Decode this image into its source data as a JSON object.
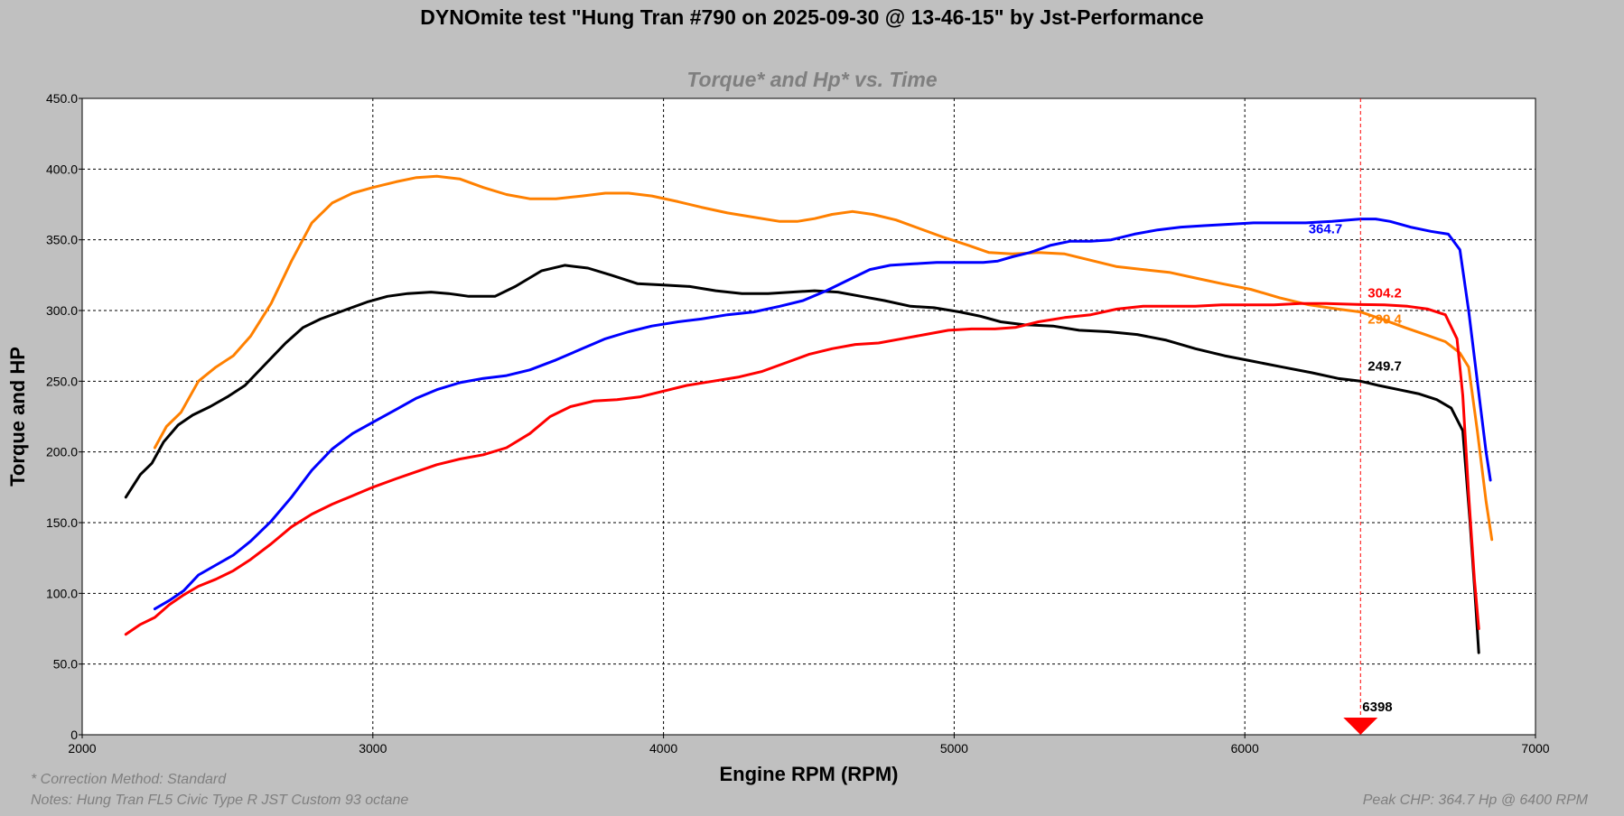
{
  "header": {
    "title": "DYNOmite test \"Hung Tran #790 on 2025-09-30 @ 13-46-15\" by Jst-Performance",
    "subtitle": "Torque* and Hp* vs. Time"
  },
  "footer": {
    "correction": "* Correction Method: Standard",
    "notes": "Notes: Hung Tran FL5 Civic Type R JST Custom 93 octane",
    "peak": "Peak CHP: 364.7 Hp @ 6400 RPM"
  },
  "chart_data": {
    "type": "line",
    "title": "Torque* and Hp* vs. Time",
    "xlabel": "Engine RPM (RPM)",
    "ylabel": "Torque and HP",
    "xlim": [
      2000,
      7000
    ],
    "ylim": [
      0,
      450
    ],
    "x_ticks": [
      2000,
      3000,
      4000,
      5000,
      6000,
      7000
    ],
    "y_ticks": [
      0,
      50,
      100,
      150,
      200,
      250,
      300,
      350,
      400,
      450
    ],
    "y_tick_labels": [
      "0",
      "50.0",
      "100.0",
      "150.0",
      "200.0",
      "250.0",
      "300.0",
      "350.0",
      "400.0",
      "450.0"
    ],
    "grid": true,
    "cursor": {
      "rpm": 6398,
      "label": "6398",
      "color": "#ff0000"
    },
    "series": [
      {
        "color": "#ff8000",
        "points": [
          [
            2250,
            203
          ],
          [
            2290,
            218
          ],
          [
            2340,
            228
          ],
          [
            2400,
            250
          ],
          [
            2460,
            260
          ],
          [
            2520,
            268
          ],
          [
            2580,
            282
          ],
          [
            2650,
            305
          ],
          [
            2720,
            335
          ],
          [
            2790,
            362
          ],
          [
            2860,
            376
          ],
          [
            2930,
            383
          ],
          [
            3000,
            387
          ],
          [
            3080,
            391
          ],
          [
            3150,
            394
          ],
          [
            3220,
            395
          ],
          [
            3300,
            393
          ],
          [
            3380,
            387
          ],
          [
            3460,
            382
          ],
          [
            3540,
            379
          ],
          [
            3630,
            379
          ],
          [
            3720,
            381
          ],
          [
            3800,
            383
          ],
          [
            3880,
            383
          ],
          [
            3960,
            381
          ],
          [
            4050,
            377
          ],
          [
            4130,
            373
          ],
          [
            4220,
            369
          ],
          [
            4310,
            366
          ],
          [
            4400,
            363
          ],
          [
            4460,
            363
          ],
          [
            4520,
            365
          ],
          [
            4580,
            368
          ],
          [
            4650,
            370
          ],
          [
            4720,
            368
          ],
          [
            4800,
            364
          ],
          [
            4880,
            358
          ],
          [
            4960,
            352
          ],
          [
            5050,
            346
          ],
          [
            5120,
            341
          ],
          [
            5200,
            340
          ],
          [
            5290,
            341
          ],
          [
            5380,
            340
          ],
          [
            5460,
            336
          ],
          [
            5560,
            331
          ],
          [
            5650,
            329
          ],
          [
            5740,
            327
          ],
          [
            5830,
            323
          ],
          [
            5920,
            319
          ],
          [
            6020,
            315
          ],
          [
            6120,
            309
          ],
          [
            6220,
            304
          ],
          [
            6320,
            301
          ],
          [
            6398,
            299
          ],
          [
            6470,
            294
          ],
          [
            6550,
            288
          ],
          [
            6620,
            283
          ],
          [
            6690,
            278
          ],
          [
            6740,
            270
          ],
          [
            6770,
            260
          ],
          [
            6800,
            215
          ],
          [
            6830,
            165
          ],
          [
            6850,
            138
          ]
        ],
        "end_label": "299.4"
      },
      {
        "color": "#000000",
        "points": [
          [
            2150,
            168
          ],
          [
            2200,
            184
          ],
          [
            2240,
            192
          ],
          [
            2280,
            207
          ],
          [
            2330,
            219
          ],
          [
            2380,
            226
          ],
          [
            2440,
            232
          ],
          [
            2500,
            239
          ],
          [
            2560,
            247
          ],
          [
            2630,
            262
          ],
          [
            2700,
            277
          ],
          [
            2760,
            288
          ],
          [
            2820,
            294
          ],
          [
            2900,
            300
          ],
          [
            2980,
            306
          ],
          [
            3050,
            310
          ],
          [
            3120,
            312
          ],
          [
            3200,
            313
          ],
          [
            3260,
            312
          ],
          [
            3330,
            310
          ],
          [
            3420,
            310
          ],
          [
            3490,
            317
          ],
          [
            3580,
            328
          ],
          [
            3660,
            332
          ],
          [
            3740,
            330
          ],
          [
            3820,
            325
          ],
          [
            3910,
            319
          ],
          [
            4000,
            318
          ],
          [
            4090,
            317
          ],
          [
            4180,
            314
          ],
          [
            4270,
            312
          ],
          [
            4360,
            312
          ],
          [
            4440,
            313
          ],
          [
            4520,
            314
          ],
          [
            4600,
            313
          ],
          [
            4680,
            310
          ],
          [
            4760,
            307
          ],
          [
            4850,
            303
          ],
          [
            4930,
            302
          ],
          [
            5020,
            299
          ],
          [
            5090,
            296
          ],
          [
            5160,
            292
          ],
          [
            5240,
            290
          ],
          [
            5340,
            289
          ],
          [
            5430,
            286
          ],
          [
            5530,
            285
          ],
          [
            5630,
            283
          ],
          [
            5730,
            279
          ],
          [
            5830,
            273
          ],
          [
            5930,
            268
          ],
          [
            6030,
            264
          ],
          [
            6130,
            260
          ],
          [
            6230,
            256
          ],
          [
            6320,
            252
          ],
          [
            6398,
            250
          ],
          [
            6460,
            247
          ],
          [
            6530,
            244
          ],
          [
            6600,
            241
          ],
          [
            6660,
            237
          ],
          [
            6710,
            231
          ],
          [
            6750,
            215
          ],
          [
            6775,
            150
          ],
          [
            6795,
            90
          ],
          [
            6805,
            58
          ]
        ],
        "end_label": "249.7"
      },
      {
        "color": "#0000ff",
        "points": [
          [
            2250,
            89
          ],
          [
            2300,
            95
          ],
          [
            2350,
            102
          ],
          [
            2400,
            113
          ],
          [
            2460,
            120
          ],
          [
            2520,
            127
          ],
          [
            2580,
            137
          ],
          [
            2650,
            151
          ],
          [
            2720,
            168
          ],
          [
            2790,
            187
          ],
          [
            2860,
            202
          ],
          [
            2930,
            213
          ],
          [
            3000,
            221
          ],
          [
            3080,
            230
          ],
          [
            3150,
            238
          ],
          [
            3220,
            244
          ],
          [
            3300,
            249
          ],
          [
            3380,
            252
          ],
          [
            3460,
            254
          ],
          [
            3540,
            258
          ],
          [
            3630,
            265
          ],
          [
            3720,
            273
          ],
          [
            3800,
            280
          ],
          [
            3880,
            285
          ],
          [
            3960,
            289
          ],
          [
            4050,
            292
          ],
          [
            4130,
            294
          ],
          [
            4220,
            297
          ],
          [
            4310,
            299
          ],
          [
            4400,
            303
          ],
          [
            4480,
            307
          ],
          [
            4560,
            314
          ],
          [
            4640,
            322
          ],
          [
            4710,
            329
          ],
          [
            4780,
            332
          ],
          [
            4860,
            333
          ],
          [
            4940,
            334
          ],
          [
            5020,
            334
          ],
          [
            5100,
            334
          ],
          [
            5150,
            335
          ],
          [
            5200,
            338
          ],
          [
            5260,
            341
          ],
          [
            5330,
            346
          ],
          [
            5400,
            349
          ],
          [
            5470,
            349
          ],
          [
            5540,
            350
          ],
          [
            5620,
            354
          ],
          [
            5700,
            357
          ],
          [
            5780,
            359
          ],
          [
            5860,
            360
          ],
          [
            5950,
            361
          ],
          [
            6030,
            362
          ],
          [
            6120,
            362
          ],
          [
            6210,
            362
          ],
          [
            6300,
            363
          ],
          [
            6398,
            364.7
          ],
          [
            6450,
            364.7
          ],
          [
            6500,
            363
          ],
          [
            6570,
            359
          ],
          [
            6640,
            356
          ],
          [
            6700,
            354
          ],
          [
            6740,
            343
          ],
          [
            6770,
            300
          ],
          [
            6800,
            250
          ],
          [
            6830,
            200
          ],
          [
            6845,
            180
          ]
        ],
        "end_label": "364.7"
      },
      {
        "color": "#ff0000",
        "points": [
          [
            2150,
            71
          ],
          [
            2200,
            78
          ],
          [
            2250,
            83
          ],
          [
            2300,
            92
          ],
          [
            2350,
            99
          ],
          [
            2400,
            105
          ],
          [
            2460,
            110
          ],
          [
            2520,
            116
          ],
          [
            2580,
            124
          ],
          [
            2650,
            135
          ],
          [
            2720,
            147
          ],
          [
            2790,
            156
          ],
          [
            2860,
            163
          ],
          [
            2930,
            169
          ],
          [
            3000,
            175
          ],
          [
            3080,
            181
          ],
          [
            3150,
            186
          ],
          [
            3220,
            191
          ],
          [
            3300,
            195
          ],
          [
            3380,
            198
          ],
          [
            3460,
            203
          ],
          [
            3540,
            213
          ],
          [
            3610,
            225
          ],
          [
            3680,
            232
          ],
          [
            3760,
            236
          ],
          [
            3840,
            237
          ],
          [
            3920,
            239
          ],
          [
            4000,
            243
          ],
          [
            4080,
            247
          ],
          [
            4170,
            250
          ],
          [
            4260,
            253
          ],
          [
            4340,
            257
          ],
          [
            4420,
            263
          ],
          [
            4500,
            269
          ],
          [
            4580,
            273
          ],
          [
            4660,
            276
          ],
          [
            4740,
            277
          ],
          [
            4820,
            280
          ],
          [
            4900,
            283
          ],
          [
            4980,
            286
          ],
          [
            5060,
            287
          ],
          [
            5140,
            287
          ],
          [
            5210,
            288
          ],
          [
            5290,
            292
          ],
          [
            5380,
            295
          ],
          [
            5470,
            297
          ],
          [
            5560,
            301
          ],
          [
            5650,
            303
          ],
          [
            5740,
            303
          ],
          [
            5830,
            303
          ],
          [
            5920,
            304
          ],
          [
            6010,
            304
          ],
          [
            6100,
            304
          ],
          [
            6190,
            305
          ],
          [
            6280,
            305
          ],
          [
            6398,
            304.2
          ],
          [
            6480,
            304
          ],
          [
            6560,
            303
          ],
          [
            6630,
            301
          ],
          [
            6690,
            297
          ],
          [
            6730,
            280
          ],
          [
            6750,
            240
          ],
          [
            6770,
            170
          ],
          [
            6790,
            110
          ],
          [
            6805,
            75
          ]
        ],
        "end_label": "304.2"
      }
    ]
  }
}
